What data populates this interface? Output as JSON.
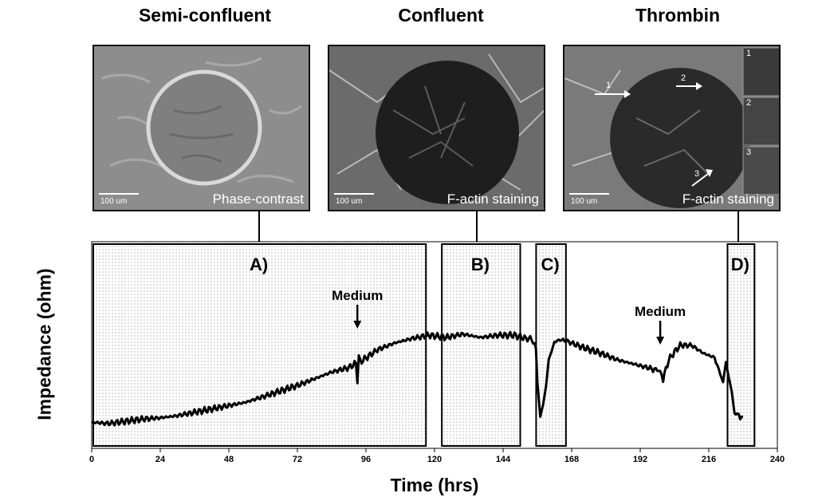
{
  "panels": [
    {
      "title": "Semi-confluent",
      "caption": "Phase-contrast",
      "scale": "100 um"
    },
    {
      "title": "Confluent",
      "caption": "F-actin staining",
      "scale": "100 um"
    },
    {
      "title": "Thrombin",
      "caption": "F-actin staining",
      "scale": "100 um",
      "insets": [
        "1",
        "2",
        "3"
      ],
      "arrows": [
        "1",
        "2",
        "3"
      ]
    }
  ],
  "chart_data": {
    "type": "line",
    "xlabel": "Time (hrs)",
    "ylabel": "Impedance (ohm)",
    "xlim": [
      0,
      240
    ],
    "xticks": [
      0,
      24,
      48,
      72,
      96,
      120,
      144,
      168,
      192,
      216,
      240
    ],
    "yticks_shown": false,
    "grid": false,
    "regions": [
      {
        "label": "A)",
        "x": [
          0,
          117
        ]
      },
      {
        "label": "B)",
        "x": [
          122,
          150
        ]
      },
      {
        "label": "C)",
        "x": [
          155,
          166
        ]
      },
      {
        "label": "D)",
        "x": [
          222,
          232
        ]
      }
    ],
    "annotations": [
      {
        "text": "Medium",
        "x": 93
      },
      {
        "text": "Medium",
        "x": 199
      }
    ],
    "series": [
      {
        "x": [
          0,
          6,
          12,
          18,
          24,
          30,
          36,
          42,
          48,
          54,
          60,
          66,
          72,
          78,
          84,
          90,
          92.5,
          93,
          93.5,
          94,
          100,
          106,
          112,
          118,
          124,
          130,
          136,
          142,
          148,
          152,
          154,
          155.5,
          156,
          157,
          158,
          159,
          160,
          162,
          164,
          166,
          172,
          178,
          184,
          190,
          196,
          198,
          199,
          200,
          202,
          204,
          206,
          210,
          214,
          218,
          220,
          221,
          222,
          223,
          224,
          225,
          226,
          228
        ],
        "y": [
          0.04,
          0.03,
          0.05,
          0.07,
          0.08,
          0.1,
          0.13,
          0.16,
          0.19,
          0.22,
          0.27,
          0.32,
          0.37,
          0.43,
          0.49,
          0.53,
          0.57,
          0.39,
          0.64,
          0.58,
          0.69,
          0.75,
          0.79,
          0.82,
          0.8,
          0.83,
          0.8,
          0.82,
          0.82,
          0.79,
          0.79,
          0.7,
          0.4,
          0.09,
          0.2,
          0.36,
          0.6,
          0.76,
          0.78,
          0.77,
          0.71,
          0.66,
          0.6,
          0.56,
          0.52,
          0.5,
          0.5,
          0.43,
          0.6,
          0.67,
          0.73,
          0.73,
          0.66,
          0.62,
          0.47,
          0.4,
          0.58,
          0.44,
          0.32,
          0.12,
          0.1,
          0.09
        ]
      }
    ]
  }
}
